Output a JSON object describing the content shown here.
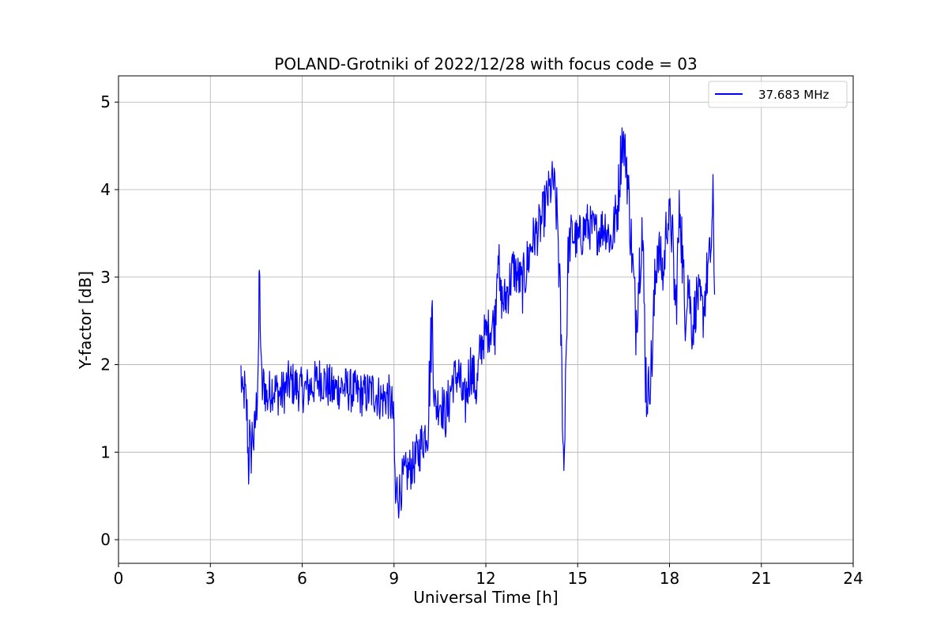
{
  "chart_data": {
    "type": "line",
    "title": "POLAND-Grotniki of 2022/12/28 with focus code = 03",
    "xlabel": "Universal Time [h]",
    "ylabel": "Y-factor [dB]",
    "xlim": [
      0,
      24
    ],
    "ylim": [
      -0.27,
      5.3
    ],
    "xticks": [
      0,
      3,
      6,
      9,
      12,
      15,
      18,
      21,
      24
    ],
    "yticks": [
      0,
      1,
      2,
      3,
      4,
      5
    ],
    "grid": true,
    "legend_position": "top-right",
    "series": [
      {
        "name": "37.683 MHz",
        "color": "#0000ff",
        "x": [
          4.0,
          4.05,
          4.12,
          4.2,
          4.25,
          4.28,
          4.32,
          4.38,
          4.42,
          4.48,
          4.52,
          4.58,
          4.6,
          4.63,
          4.66,
          4.7,
          4.75,
          4.85,
          5.0,
          5.3,
          5.6,
          6.0,
          6.3,
          6.6,
          7.0,
          7.3,
          7.6,
          8.0,
          8.3,
          8.6,
          8.8,
          8.95,
          9.0,
          9.05,
          9.1,
          9.15,
          9.3,
          9.5,
          9.7,
          9.9,
          10.1,
          10.25,
          10.3,
          10.35,
          10.5,
          10.7,
          10.9,
          11.1,
          11.3,
          11.5,
          11.7,
          11.8,
          11.9,
          12.1,
          12.3,
          12.4,
          12.45,
          12.6,
          12.9,
          13.2,
          13.5,
          13.8,
          14.0,
          14.2,
          14.35,
          14.45,
          14.5,
          14.55,
          14.6,
          14.7,
          14.8,
          15.0,
          15.3,
          15.6,
          15.9,
          16.1,
          16.3,
          16.45,
          16.6,
          16.75,
          16.9,
          17.1,
          17.25,
          17.4,
          17.6,
          17.8,
          17.9,
          18.05,
          18.2,
          18.35,
          18.5,
          18.6,
          18.75,
          18.9,
          19.1,
          19.25,
          19.35,
          19.42,
          19.47
        ],
        "y": [
          1.9,
          1.6,
          1.7,
          1.4,
          0.8,
          1.2,
          0.9,
          1.3,
          1.1,
          1.4,
          1.6,
          2.3,
          3.1,
          2.6,
          1.9,
          1.7,
          1.8,
          1.6,
          1.75,
          1.65,
          1.8,
          1.7,
          1.75,
          1.85,
          1.7,
          1.75,
          1.7,
          1.65,
          1.7,
          1.6,
          1.65,
          1.5,
          1.2,
          0.4,
          0.6,
          0.5,
          0.7,
          0.8,
          0.9,
          1.1,
          1.3,
          2.6,
          1.8,
          1.5,
          1.6,
          1.4,
          1.8,
          1.9,
          1.5,
          2.0,
          1.7,
          2.1,
          2.3,
          2.4,
          2.5,
          3.5,
          2.8,
          2.7,
          3.1,
          2.9,
          3.4,
          3.6,
          3.9,
          4.1,
          3.6,
          2.4,
          1.6,
          0.7,
          1.9,
          3.3,
          3.5,
          3.4,
          3.6,
          3.5,
          3.6,
          3.4,
          3.8,
          4.6,
          4.3,
          3.4,
          2.5,
          3.6,
          1.6,
          1.9,
          3.4,
          3.0,
          3.6,
          3.7,
          2.6,
          3.9,
          2.5,
          3.0,
          2.4,
          2.8,
          2.6,
          3.1,
          3.3,
          3.8,
          2.8
        ]
      }
    ]
  }
}
